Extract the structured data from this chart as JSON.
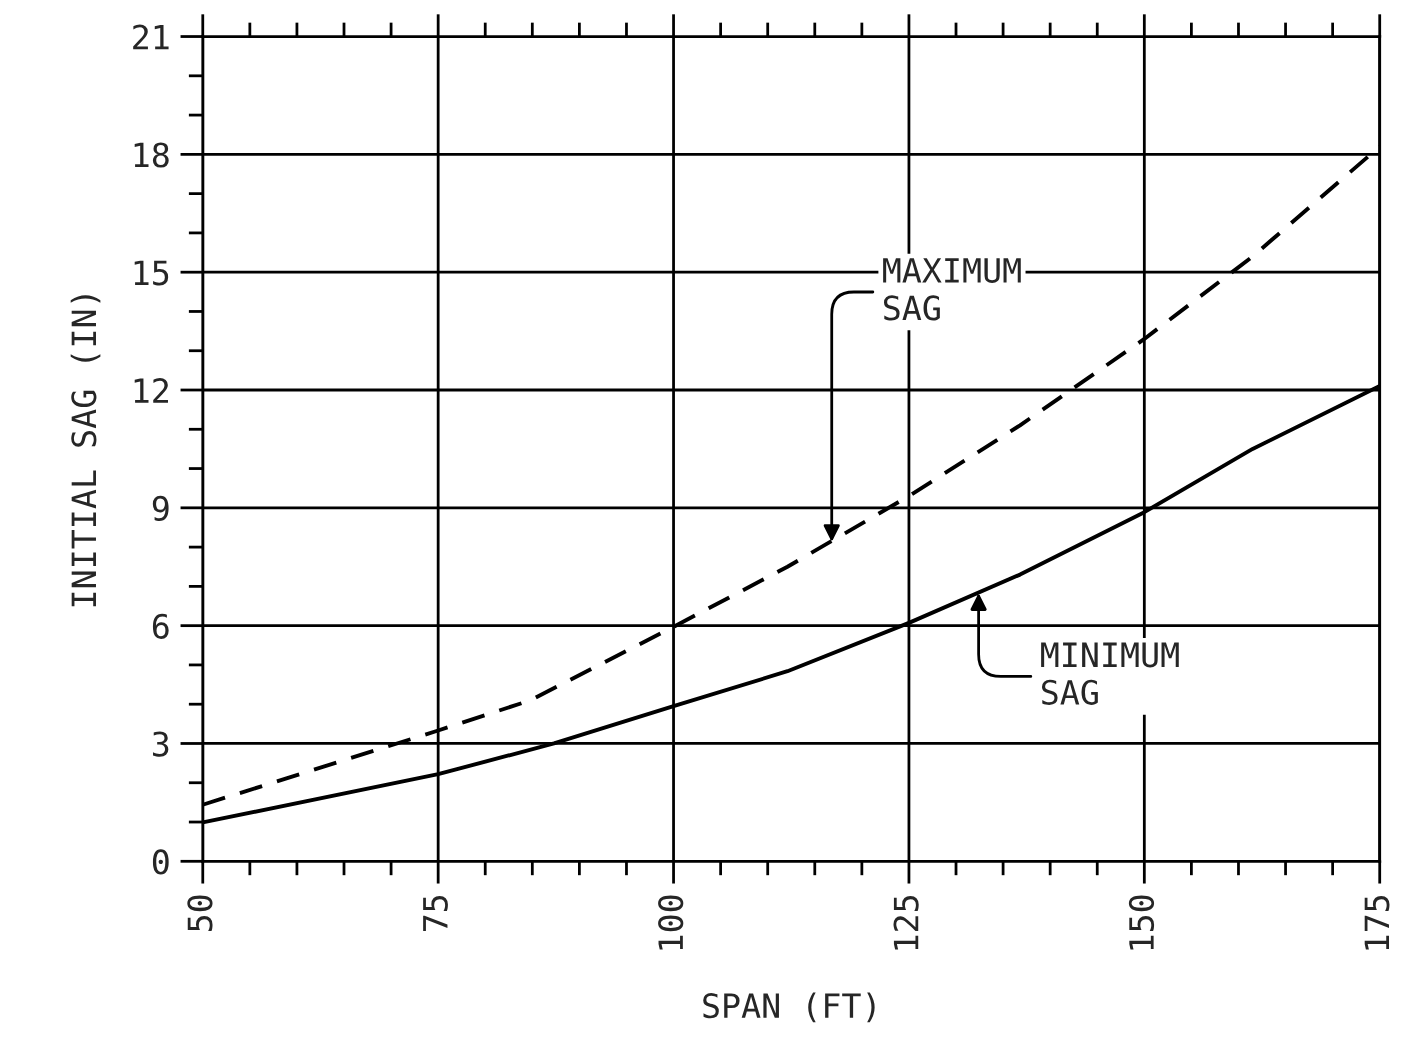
{
  "chart_data": {
    "type": "line",
    "xlabel": "SPAN (FT)",
    "ylabel": "INITIAL SAG (IN)",
    "xlim": [
      50,
      175
    ],
    "ylim": [
      0,
      21
    ],
    "xticks": [
      50,
      75,
      100,
      125,
      150,
      175
    ],
    "yticks": [
      0,
      3,
      6,
      9,
      12,
      15,
      18,
      21
    ],
    "grid": true,
    "series": [
      {
        "color": "#000000",
        "line_style": "solid",
        "x": [
          50,
          75,
          87.3,
          100,
          112.1,
          125,
          136.8,
          150,
          161.5,
          175
        ],
        "values": [
          0.99,
          2.22,
          3.0,
          3.95,
          4.84,
          6.07,
          7.3,
          8.89,
          10.5,
          12.1
        ]
      },
      {
        "color": "#000000",
        "line_style": "dashed",
        "x": [
          50,
          75,
          84.8,
          100,
          112.1,
          125,
          136.8,
          150,
          161.5,
          175
        ],
        "values": [
          1.44,
          3.33,
          4.1,
          5.97,
          7.5,
          9.3,
          11.1,
          13.3,
          15.4,
          18.2
        ]
      }
    ],
    "annotations": [
      {
        "text": "MAXIMUM\nSAG",
        "x": 116.8,
        "y": 8.13
      },
      {
        "text": "MINIMUM\nSAG",
        "x": 132.4,
        "y": 6.83
      }
    ]
  }
}
